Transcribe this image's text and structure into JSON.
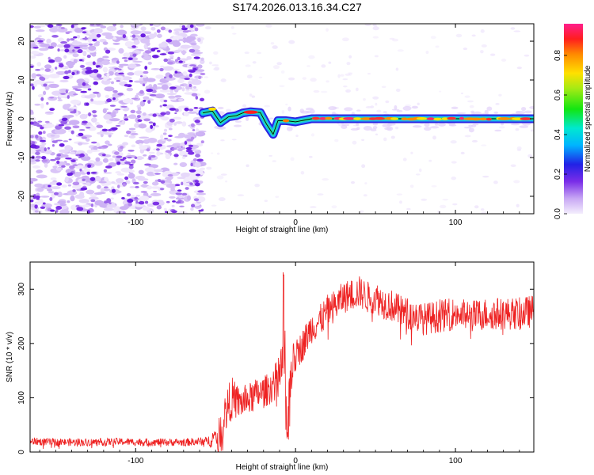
{
  "title": "S174.2026.013.16.34.C27",
  "chart_data": [
    {
      "type": "heatmap",
      "name": "spectrogram",
      "xlabel": "Height of straight line (km)",
      "ylabel": "Frequency (Hz)",
      "xlim": [
        -166,
        149
      ],
      "ylim": [
        -24.5,
        24.5
      ],
      "xticks": [
        -100,
        0,
        100
      ],
      "yticks": [
        -20,
        -10,
        0,
        10,
        20
      ],
      "noise_region_x": [
        -166,
        -58
      ],
      "signal_track": [
        {
          "x": -58,
          "y": 1.5
        },
        {
          "x": -52,
          "y": 2.0
        },
        {
          "x": -47,
          "y": -1.0
        },
        {
          "x": -42,
          "y": 0.5
        },
        {
          "x": -37,
          "y": 0.8
        },
        {
          "x": -33,
          "y": 1.5
        },
        {
          "x": -28,
          "y": 1.8
        },
        {
          "x": -22,
          "y": 1.6
        },
        {
          "x": -18,
          "y": -1.5
        },
        {
          "x": -14,
          "y": -4.0
        },
        {
          "x": -11,
          "y": -0.5
        },
        {
          "x": -6,
          "y": -0.5
        },
        {
          "x": 0,
          "y": -0.8
        },
        {
          "x": 10,
          "y": 0.0
        },
        {
          "x": 149,
          "y": 0.0
        }
      ],
      "colorbar": {
        "label": "Normalized spectral amplitude",
        "ticks": [
          "0.0",
          "0.2",
          "0.4",
          "0.6",
          "0.8"
        ],
        "tick_values": [
          0.0,
          0.2,
          0.4,
          0.6,
          0.8
        ],
        "range": [
          0,
          0.96
        ]
      }
    },
    {
      "type": "line",
      "name": "snr",
      "xlabel": "Height of straight line (km)",
      "ylabel": "SNR (10 * v/v)",
      "xlim": [
        -166,
        149
      ],
      "ylim": [
        0,
        350
      ],
      "xticks": [
        -100,
        0,
        100
      ],
      "yticks": [
        0,
        100,
        200,
        300
      ],
      "color": "#ee2222",
      "series": [
        {
          "name": "SNR",
          "x": [
            -166,
            -150,
            -130,
            -110,
            -90,
            -70,
            -55,
            -48,
            -44,
            -40,
            -35,
            -30,
            -25,
            -20,
            -15,
            -10,
            -7,
            -5,
            -2,
            0,
            5,
            10,
            15,
            20,
            25,
            30,
            35,
            40,
            45,
            50,
            55,
            60,
            65,
            70,
            75,
            80,
            90,
            100,
            110,
            120,
            130,
            140,
            149
          ],
          "values": [
            20,
            18,
            18,
            19,
            18,
            18,
            20,
            30,
            70,
            100,
            90,
            95,
            105,
            110,
            120,
            140,
            170,
            110,
            160,
            175,
            200,
            230,
            240,
            260,
            270,
            285,
            290,
            295,
            285,
            285,
            275,
            270,
            260,
            255,
            250,
            245,
            250,
            255,
            250,
            255,
            255,
            255,
            260
          ],
          "noise_amplitude": [
            7,
            7,
            7,
            7,
            7,
            7,
            8,
            30,
            40,
            40,
            30,
            30,
            30,
            30,
            30,
            40,
            70,
            70,
            40,
            30,
            30,
            30,
            30,
            30,
            30,
            30,
            30,
            30,
            30,
            30,
            30,
            30,
            30,
            30,
            30,
            30,
            30,
            30,
            30,
            30,
            30,
            30,
            30
          ]
        }
      ]
    }
  ]
}
